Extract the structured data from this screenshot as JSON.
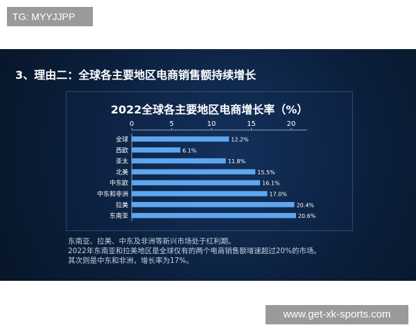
{
  "badge": {
    "text": "TG: MYYJJPP"
  },
  "slide": {
    "title": "3、理由二：全球各主要地区电商销售额持续增长",
    "notes": [
      "东南亚、拉美、中东及非洲等新兴市场处于红利期。",
      "2022年东南亚和拉美地区是全球仅有的两个电商销售额增速超过20%的市场。",
      "其次则是中东和非洲，增长率为17%。"
    ]
  },
  "colors": {
    "bar": "#5ea6ef",
    "background": "#0b1f3c"
  },
  "chart_data": {
    "type": "bar",
    "orientation": "horizontal",
    "title": "2022全球各主要地区电商增长率（%）",
    "categories": [
      "全球",
      "西欧",
      "亚太",
      "北美",
      "中东欧",
      "中东和非洲",
      "拉美",
      "东南亚"
    ],
    "values": [
      12.2,
      6.1,
      11.8,
      15.5,
      16.1,
      17.0,
      20.4,
      20.6
    ],
    "value_labels": [
      "12.2%",
      "6.1%",
      "11.8%",
      "15.5%",
      "16.1%",
      "17.0%",
      "20.4%",
      "20.6%"
    ],
    "xticks": [
      0,
      5,
      10,
      15,
      20
    ],
    "xlim": [
      0,
      22
    ],
    "grid": false,
    "xlabel": "",
    "ylabel": ""
  },
  "footer": {
    "url": "www.get-xk-sports.com"
  }
}
